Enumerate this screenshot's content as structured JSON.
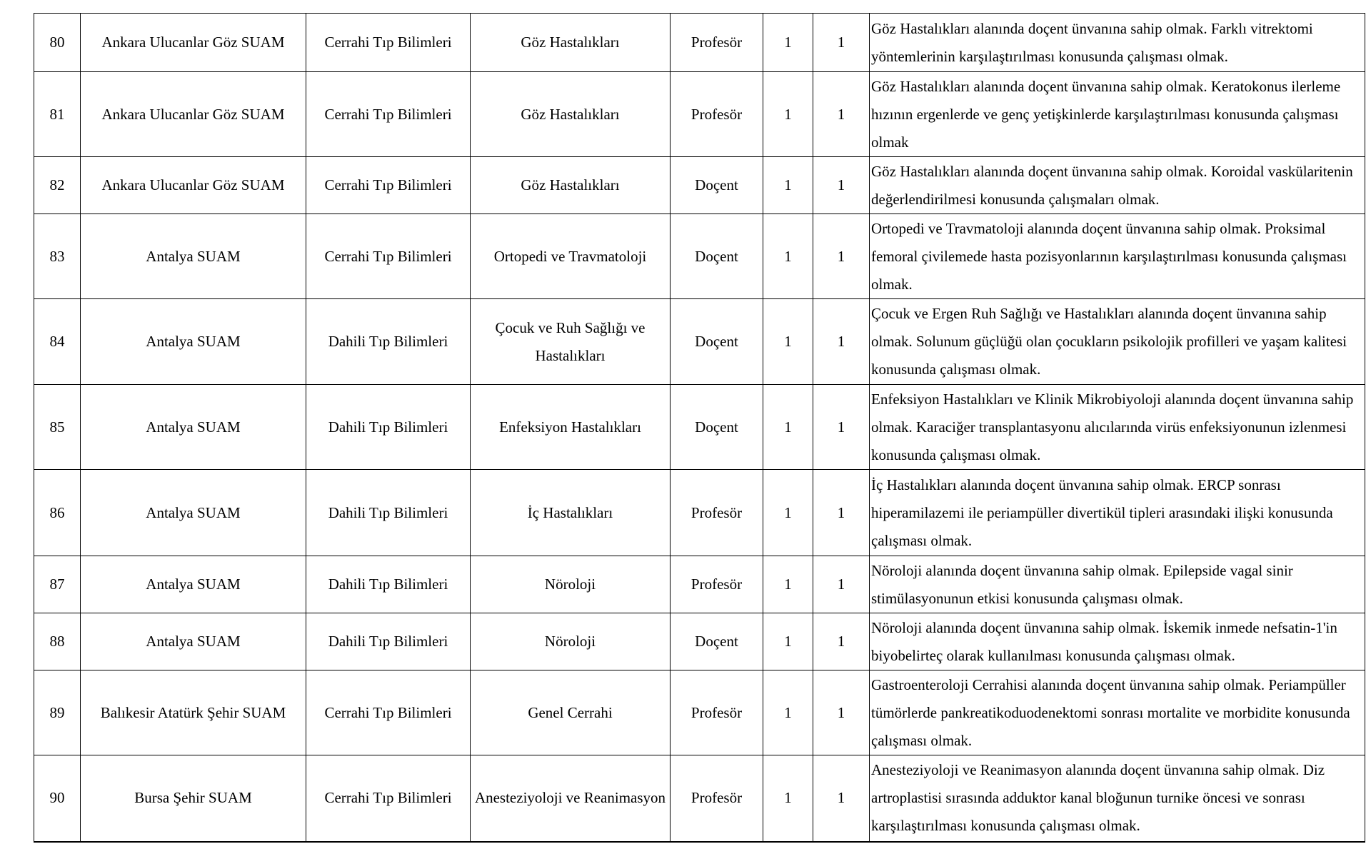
{
  "rows": [
    {
      "no": "80",
      "institution": "Ankara Ulucanlar Göz SUAM",
      "field": "Cerrahi Tıp Bilimleri",
      "department": "Göz Hastalıkları",
      "title": "Profesör",
      "c1": "1",
      "c2": "1",
      "description": "Göz Hastalıkları alanında doçent ünvanına sahip olmak. Farklı vitrektomi yöntemlerinin karşılaştırılması konusunda çalışması olmak."
    },
    {
      "no": "81",
      "institution": "Ankara Ulucanlar Göz SUAM",
      "field": "Cerrahi Tıp Bilimleri",
      "department": "Göz Hastalıkları",
      "title": "Profesör",
      "c1": "1",
      "c2": "1",
      "description": "Göz Hastalıkları alanında doçent ünvanına sahip olmak. Keratokonus ilerleme hızının ergenlerde ve genç yetişkinlerde karşılaştırılması konusunda çalışması olmak"
    },
    {
      "no": "82",
      "institution": "Ankara Ulucanlar Göz SUAM",
      "field": "Cerrahi Tıp Bilimleri",
      "department": "Göz Hastalıkları",
      "title": "Doçent",
      "c1": "1",
      "c2": "1",
      "description": "Göz Hastalıkları alanında doçent ünvanına sahip olmak. Koroidal vaskülaritenin değerlendirilmesi konusunda çalışmaları olmak."
    },
    {
      "no": "83",
      "institution": "Antalya SUAM",
      "field": "Cerrahi Tıp Bilimleri",
      "department": "Ortopedi ve Travmatoloji",
      "title": "Doçent",
      "c1": "1",
      "c2": "1",
      "description": "Ortopedi ve Travmatoloji alanında doçent ünvanına sahip olmak. Proksimal femoral çivilemede hasta pozisyonlarının karşılaştırılması konusunda çalışması olmak."
    },
    {
      "no": "84",
      "institution": "Antalya SUAM",
      "field": "Dahili Tıp Bilimleri",
      "department": "Çocuk ve Ruh Sağlığı ve Hastalıkları",
      "title": "Doçent",
      "c1": "1",
      "c2": "1",
      "description": "Çocuk ve Ergen Ruh Sağlığı ve Hastalıkları alanında doçent ünvanına sahip olmak. Solunum güçlüğü olan çocukların psikolojik profilleri ve yaşam kalitesi konusunda çalışması olmak."
    },
    {
      "no": "85",
      "institution": "Antalya SUAM",
      "field": "Dahili Tıp Bilimleri",
      "department": "Enfeksiyon Hastalıkları",
      "title": "Doçent",
      "c1": "1",
      "c2": "1",
      "description": "Enfeksiyon Hastalıkları ve Klinik Mikrobiyoloji alanında doçent ünvanına sahip olmak. Karaciğer transplantasyonu alıcılarında virüs enfeksiyonunun izlenmesi konusunda çalışması olmak."
    },
    {
      "no": "86",
      "institution": "Antalya SUAM",
      "field": "Dahili Tıp Bilimleri",
      "department": "İç Hastalıkları",
      "title": "Profesör",
      "c1": "1",
      "c2": "1",
      "description": "İç Hastalıkları alanında doçent ünvanına sahip olmak. ERCP sonrası hiperamilazemi ile periampüller divertikül tipleri arasındaki ilişki konusunda çalışması olmak."
    },
    {
      "no": "87",
      "institution": "Antalya SUAM",
      "field": "Dahili Tıp Bilimleri",
      "department": "Nöroloji",
      "title": "Profesör",
      "c1": "1",
      "c2": "1",
      "description": "Nöroloji alanında doçent ünvanına sahip olmak. Epilepside vagal sinir stimülasyonunun etkisi konusunda çalışması olmak."
    },
    {
      "no": "88",
      "institution": "Antalya SUAM",
      "field": "Dahili Tıp Bilimleri",
      "department": "Nöroloji",
      "title": "Doçent",
      "c1": "1",
      "c2": "1",
      "description": "Nöroloji alanında doçent ünvanına sahip olmak. İskemik inmede nefsatin-1'in biyobelirteç olarak kullanılması konusunda çalışması olmak."
    },
    {
      "no": "89",
      "institution": "Balıkesir Atatürk Şehir SUAM",
      "field": "Cerrahi Tıp Bilimleri",
      "department": "Genel Cerrahi",
      "title": "Profesör",
      "c1": "1",
      "c2": "1",
      "description": "Gastroenteroloji Cerrahisi alanında doçent ünvanına sahip olmak. Periampüller tümörlerde pankreatikoduodenektomi sonrası mortalite ve morbidite konusunda çalışması olmak."
    },
    {
      "no": "90",
      "institution": "Bursa Şehir SUAM",
      "field": "Cerrahi Tıp Bilimleri",
      "department": "Anesteziyoloji ve Reanimasyon",
      "title": "Profesör",
      "c1": "1",
      "c2": "1",
      "description": "Anesteziyoloji ve Reanimasyon alanında doçent ünvanına sahip olmak. Diz artroplastisi sırasında adduktor kanal bloğunun turnike öncesi ve sonrası karşılaştırılması konusunda çalışması olmak."
    }
  ]
}
